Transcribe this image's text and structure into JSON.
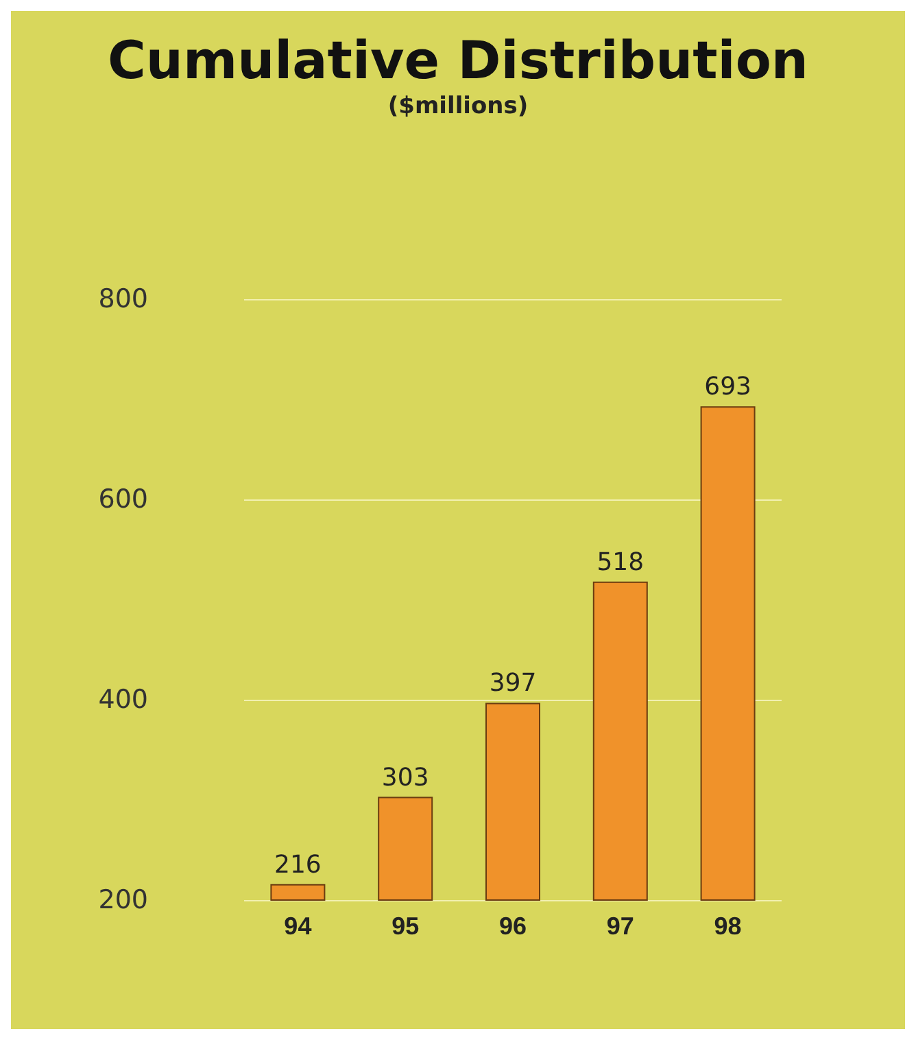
{
  "chart_data": {
    "type": "bar",
    "title": "Cumulative Distribution",
    "subtitle": "($millions)",
    "categories": [
      "94",
      "95",
      "96",
      "97",
      "98"
    ],
    "values": [
      216,
      303,
      397,
      518,
      693
    ],
    "color": "#f0922a",
    "ylim": [
      200,
      800
    ],
    "yticks": [
      200,
      400,
      600,
      800
    ],
    "grid": "y",
    "data_labels": true
  }
}
